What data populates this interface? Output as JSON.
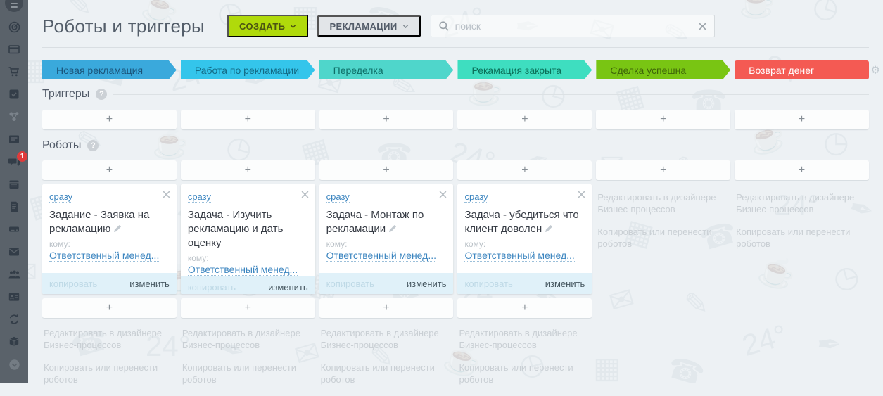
{
  "page": {
    "title": "Роботы и триггеры"
  },
  "toolbar": {
    "create_label": "СОЗДАТЬ",
    "entity_label": "РЕКЛАМАЦИИ",
    "search_placeholder": "поиск"
  },
  "colors": {
    "create_button": "#b0da0b",
    "entity_button": "#e2e5e8",
    "sidebar": "#5a626a",
    "badge": "#e03b3b",
    "card_footer": "#e0f1f9"
  },
  "stages": [
    {
      "label": "Новая рекламация",
      "color": "#3aa9dc",
      "text": "#1a547a"
    },
    {
      "label": "Работа по рекламации",
      "color": "#34c5eb",
      "text": "#136a85"
    },
    {
      "label": "Переделка",
      "color": "#4fd6cb",
      "text": "#0e6e67"
    },
    {
      "label": "Рекамация закрыта",
      "color": "#3edec0",
      "text": "#0b7059"
    },
    {
      "label": "Сделка успешна",
      "color": "#79c513",
      "text": "#3e6508"
    },
    {
      "label": "Возврат денег",
      "color": "#f45a53",
      "text": "#ffffff"
    }
  ],
  "sections": {
    "triggers_label": "Триггеры",
    "robots_label": "Роботы",
    "help_symbol": "?"
  },
  "plus_symbol": "+",
  "cards": [
    {
      "when": "сразу",
      "title": "Задание - Заявка на рекламацию",
      "to": "кому:",
      "assignee": "Ответственный менед...",
      "copy": "копировать",
      "edit": "изменить"
    },
    {
      "when": "сразу",
      "title": "Задача - Изучить рекламацию и дать оценку",
      "to": "кому:",
      "assignee": "Ответственный менед...",
      "copy": "копировать",
      "edit": "изменить"
    },
    {
      "when": "сразу",
      "title": "Задача - Монтаж по рекламации",
      "to": "кому:",
      "assignee": "Ответственный менед...",
      "copy": "копировать",
      "edit": "изменить"
    },
    {
      "when": "сразу",
      "title": "Задача - убедиться что клиент доволен",
      "to": "кому:",
      "assignee": "Ответственный менед...",
      "copy": "копировать",
      "edit": "изменить"
    }
  ],
  "ghost": {
    "designer": "Редактировать в дизайнере Бизнес-процессов",
    "copy_move": "Копировать или перенести роботов"
  },
  "sidebar": {
    "chat_badge": "1"
  }
}
